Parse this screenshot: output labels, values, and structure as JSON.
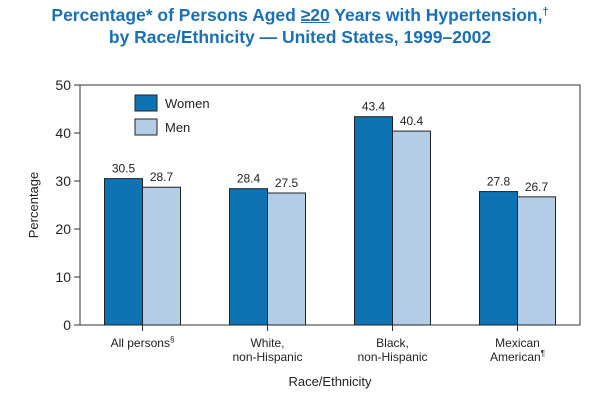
{
  "title": {
    "part1": "Percentage* of Persons Aged ",
    "ge": "≥20",
    "part2": " Years with Hypertension,",
    "dagger": "†",
    "line2": "by Race/Ethnicity — United States, 1999–2002"
  },
  "colors": {
    "women": "#0d73b3",
    "men": "#b3cde6",
    "title": "#1a6fb5",
    "axis": "#333333"
  },
  "chart_data": {
    "type": "bar",
    "title": "Percentage* of Persons Aged ≥20 Years with Hypertension,† by Race/Ethnicity — United States, 1999–2002",
    "xlabel": "Race/Ethnicity",
    "ylabel": "Percentage",
    "ylim": [
      0,
      50
    ],
    "yticks": [
      0,
      10,
      20,
      30,
      40,
      50
    ],
    "legend_position": "top-left",
    "grid": false,
    "categories": [
      {
        "line1": "All persons",
        "line2": "",
        "mark": "§"
      },
      {
        "line1": "White,",
        "line2": "non-Hispanic",
        "mark": ""
      },
      {
        "line1": "Black,",
        "line2": "non-Hispanic",
        "mark": ""
      },
      {
        "line1": "Mexican",
        "line2": "American",
        "mark": "¶"
      }
    ],
    "series": [
      {
        "name": "Women",
        "values": [
          30.5,
          28.4,
          43.4,
          27.8
        ],
        "labels": [
          "30.5",
          "28.4",
          "43.4",
          "27.8"
        ]
      },
      {
        "name": "Men",
        "values": [
          28.7,
          27.5,
          40.4,
          26.7
        ],
        "labels": [
          "28.7",
          "27.5",
          "40.4",
          "26.7"
        ]
      }
    ]
  }
}
